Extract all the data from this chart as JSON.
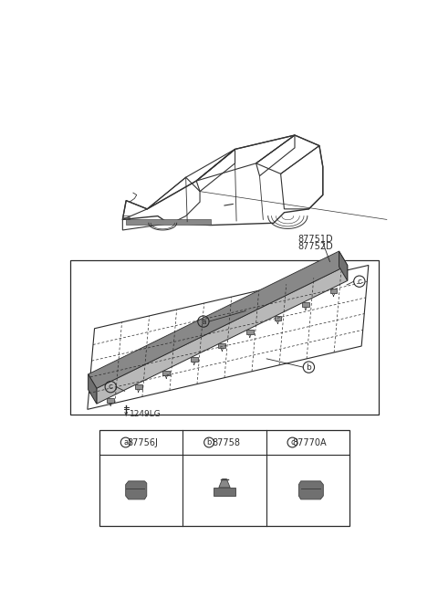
{
  "bg_color": "#ffffff",
  "line_color": "#2a2a2a",
  "part_numbers_top": [
    "87751D",
    "87752D"
  ],
  "part_labels": [
    {
      "letter": "a",
      "number": "87756J"
    },
    {
      "letter": "b",
      "number": "87758"
    },
    {
      "letter": "c",
      "number": "87770A"
    }
  ],
  "bolt_label": "1249LG",
  "mould_face_color": "#b8b8b8",
  "mould_top_color": "#888888",
  "mould_dark_color": "#707070",
  "clip_color": "#909090",
  "grid_color": "#cccccc"
}
